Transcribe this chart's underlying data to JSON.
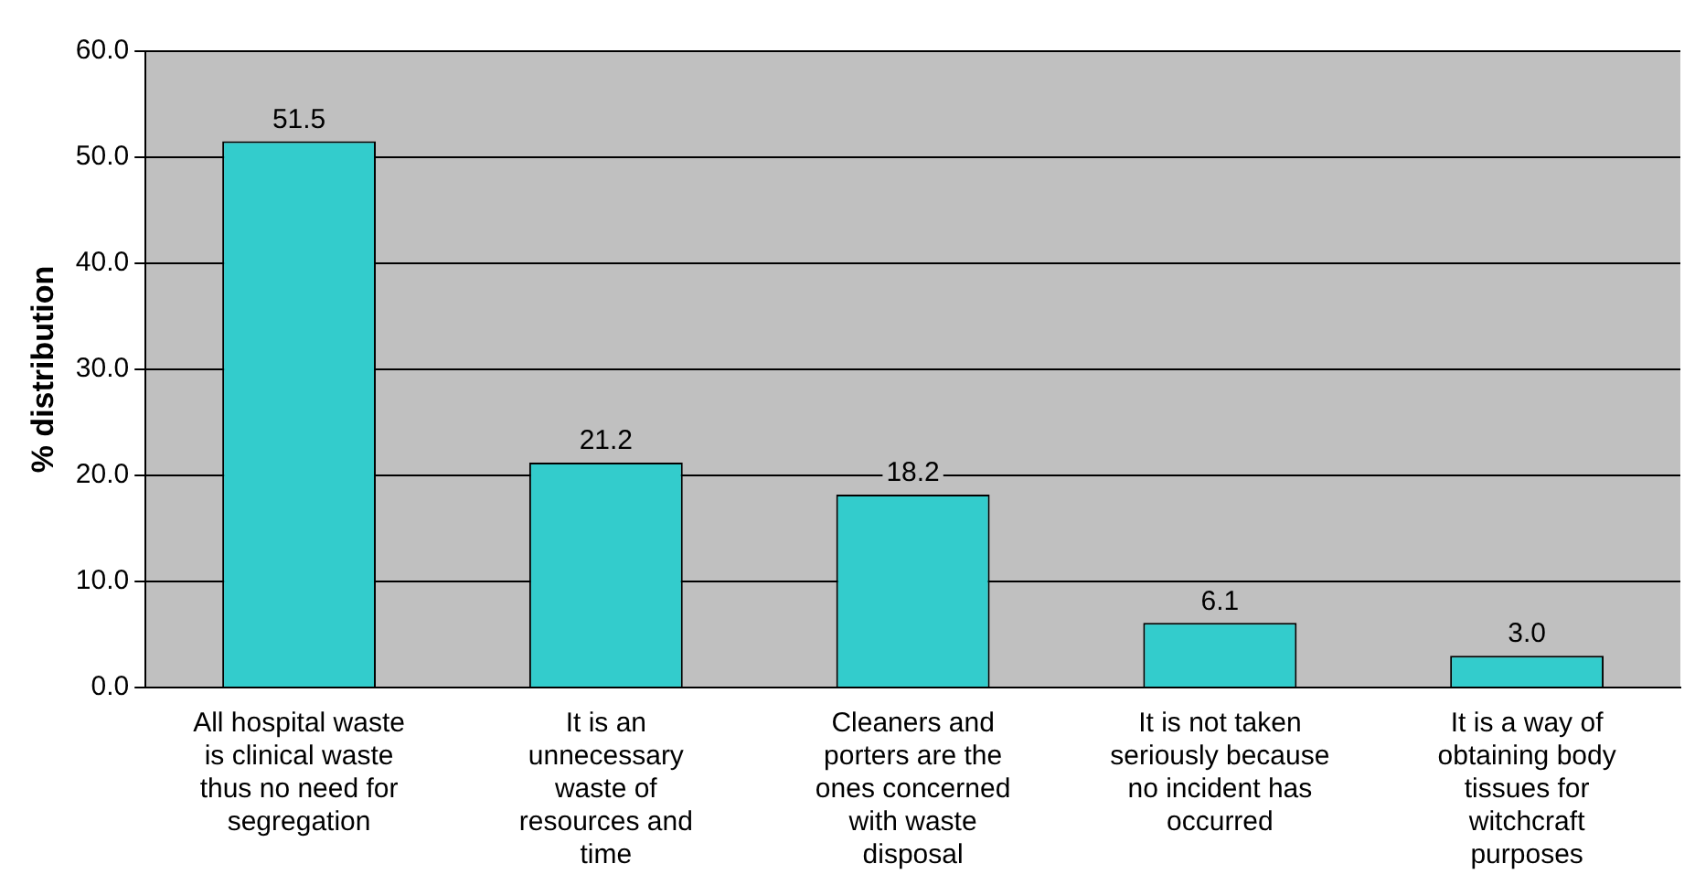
{
  "chart_data": {
    "type": "bar",
    "ylabel": "% distribution",
    "categories": [
      "All hospital waste is clinical waste thus no need for segregation",
      "It is an unnecessary waste of resources and time",
      "Cleaners and porters are the ones concerned with waste disposal",
      "It is not taken seriously because no incident has occurred",
      "It is a way of obtaining body tissues for witchcraft purposes"
    ],
    "values": [
      51.5,
      21.2,
      18.2,
      6.1,
      3.0
    ],
    "value_labels": [
      "51.5",
      "21.2",
      "18.2",
      "6.1",
      "3.0"
    ],
    "color": "#33cccc",
    "ylim": [
      0,
      60
    ],
    "yticks": [
      {
        "value": 0,
        "label": "0.0"
      },
      {
        "value": 10,
        "label": "10.0"
      },
      {
        "value": 20,
        "label": "20.0"
      },
      {
        "value": 30,
        "label": "30.0"
      },
      {
        "value": 40,
        "label": "40.0"
      },
      {
        "value": 50,
        "label": "50.0"
      },
      {
        "value": 60,
        "label": "60.0"
      }
    ],
    "grid": "y",
    "legend": false
  }
}
